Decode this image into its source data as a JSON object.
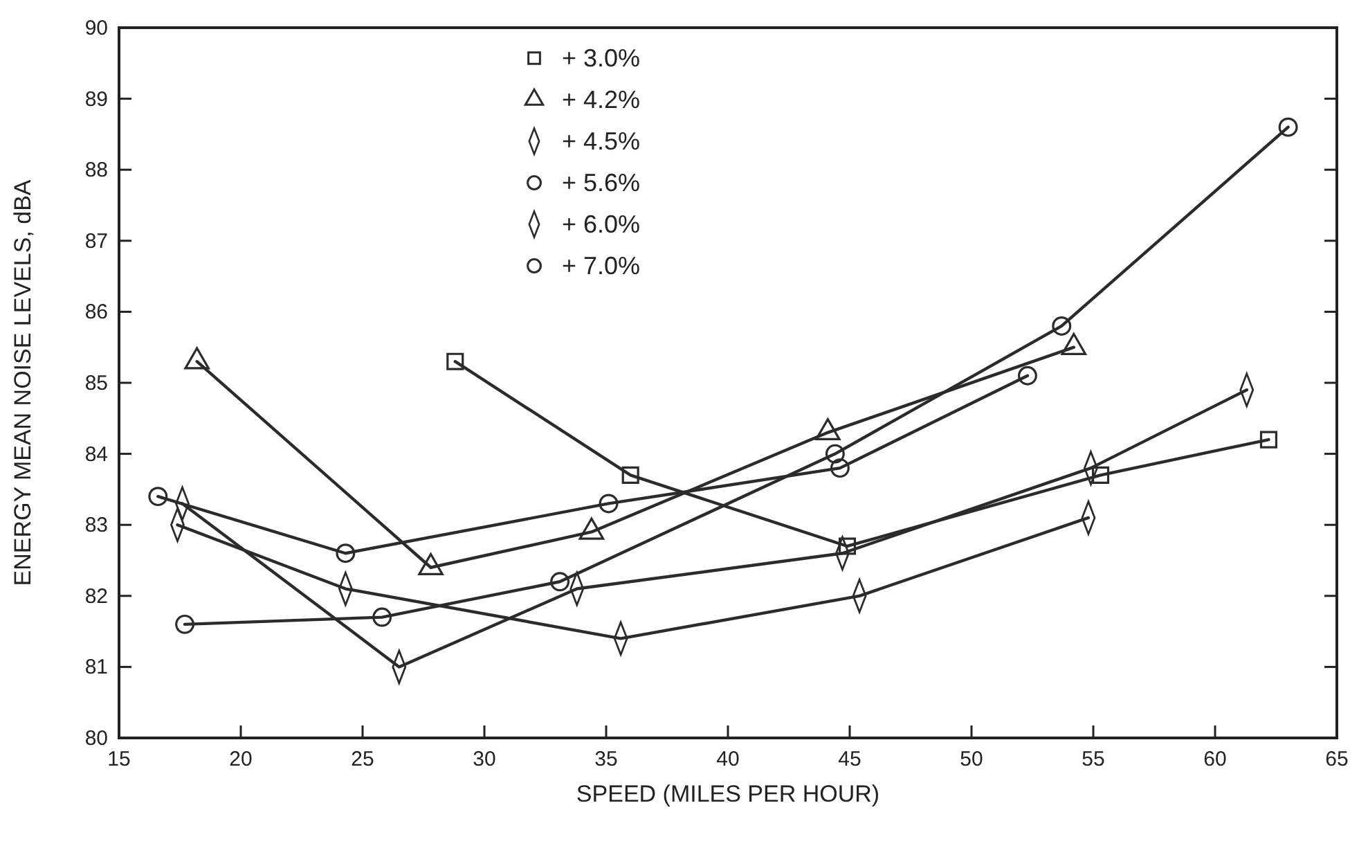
{
  "chart_data": {
    "type": "line",
    "xlabel": "SPEED (MILES PER HOUR)",
    "ylabel": "ENERGY MEAN NOISE LEVELS, dBA",
    "xlim": [
      15,
      65
    ],
    "xticks": [
      15,
      20,
      25,
      30,
      35,
      40,
      45,
      50,
      55,
      60,
      65
    ],
    "ylim": [
      80,
      90
    ],
    "yticks": [
      80,
      81,
      82,
      83,
      84,
      85,
      86,
      87,
      88,
      89,
      90
    ],
    "grid": false,
    "legend": "top",
    "line_style": "solid",
    "series": [
      {
        "name": "+ 3.0%",
        "color": "#2b2b2b",
        "marker": "square",
        "x": [
          28.8,
          36.0,
          44.9,
          55.3,
          62.2
        ],
        "values": [
          85.3,
          83.7,
          82.7,
          83.7,
          84.2
        ]
      },
      {
        "name": "+ 4.2%",
        "color": "#2b2b2b",
        "marker": "triangle",
        "x": [
          18.2,
          27.8,
          34.4,
          44.1,
          54.2
        ],
        "values": [
          85.3,
          82.4,
          82.9,
          84.3,
          85.5
        ]
      },
      {
        "name": "+ 4.5%",
        "color": "#2b2b2b",
        "marker": "diamond",
        "x": [
          17.6,
          26.5,
          33.8,
          44.7,
          54.9,
          61.3
        ],
        "values": [
          83.3,
          81.0,
          82.1,
          82.6,
          83.8,
          84.9
        ]
      },
      {
        "name": "+ 5.6%",
        "color": "#2b2b2b",
        "marker": "circle",
        "x": [
          17.7,
          25.8,
          33.1,
          44.4,
          53.7,
          63.0
        ],
        "values": [
          81.6,
          81.7,
          82.2,
          84.0,
          85.8,
          88.6
        ]
      },
      {
        "name": "+ 6.0%",
        "color": "#2b2b2b",
        "marker": "diamond",
        "x": [
          17.4,
          24.3,
          35.6,
          45.4,
          54.8
        ],
        "values": [
          83.0,
          82.1,
          81.4,
          82.0,
          83.1
        ]
      },
      {
        "name": "+ 7.0%",
        "color": "#2b2b2b",
        "marker": "circle",
        "x": [
          16.6,
          24.3,
          35.1,
          44.6,
          52.3
        ],
        "values": [
          83.4,
          82.6,
          83.3,
          83.8,
          85.1
        ]
      }
    ]
  }
}
